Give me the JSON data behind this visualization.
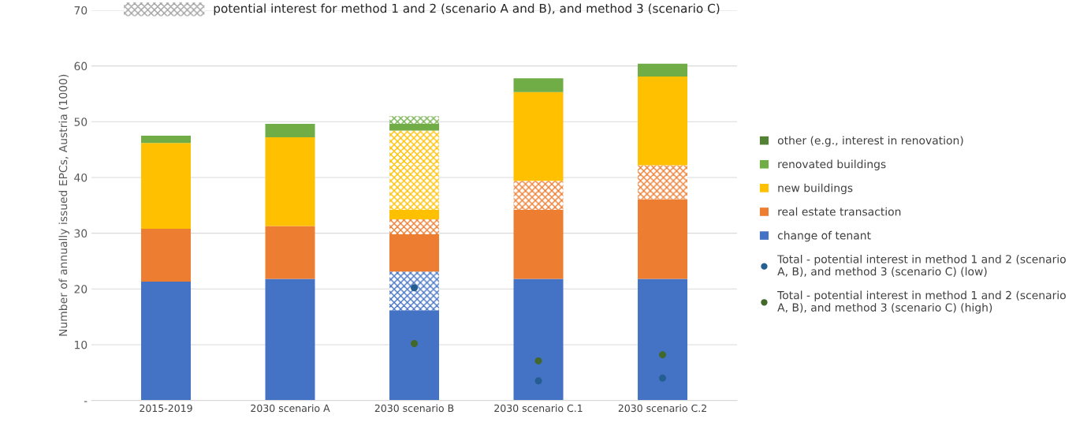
{
  "chart_data": {
    "type": "bar",
    "stacked": true,
    "categories": [
      "2015-2019",
      "2030 scenario A",
      "2030 scenario B",
      "2030 scenario C.1",
      "2030 scenario C.2"
    ],
    "ylabel": "Number of annually issued EPCs, Austria (1000)",
    "ylim": [
      0,
      70
    ],
    "yticks": [
      {
        "value": 0,
        "label": "-"
      },
      10,
      20,
      30,
      40,
      50,
      60,
      70
    ],
    "grid": "y",
    "legend": "right",
    "annotations": [
      "potential interest for method 1 and 2 (scenario A and B), and method 3 (scenario C)"
    ],
    "series": [
      {
        "name": "change of tenant",
        "color": "#4472c4",
        "values": [
          21.3,
          21.8,
          16.2,
          21.8,
          21.8
        ]
      },
      {
        "color": "#4472c4",
        "values": [
          null,
          null,
          6.9,
          null,
          null
        ]
      },
      {
        "name": "real estate transaction",
        "color": "#ed7d31",
        "values": [
          9.5,
          9.5,
          6.7,
          12.4,
          14.3
        ]
      },
      {
        "color": "#ed7d31",
        "values": [
          null,
          null,
          2.7,
          5.2,
          6.1
        ]
      },
      {
        "name": "new buildings",
        "color": "#ffc000",
        "values": [
          15.4,
          15.9,
          1.7,
          15.9,
          15.9
        ]
      },
      {
        "color": "#ffc000",
        "values": [
          null,
          null,
          14.2,
          null,
          null
        ]
      },
      {
        "name": "renovated buildings",
        "color": "#70ad47",
        "values": [
          1.3,
          2.4,
          1.2,
          2.5,
          2.3
        ]
      },
      {
        "color": "#70ad47",
        "values": [
          null,
          null,
          1.4,
          null,
          null
        ]
      },
      {
        "name": "other (e.g., interest in renovation)",
        "color": "#548235",
        "values": [
          0,
          0,
          0,
          0,
          0
        ]
      },
      {
        "name": "Total - potential interest in method 1 and 2 (scenario A, B), and method 3 (scenario C) (low)",
        "type": "scatter",
        "marker": "circle",
        "color": "#255e91",
        "values": [
          null,
          null,
          20.2,
          3.5,
          4.0
        ]
      },
      {
        "name": "Total - potential interest in method 1 and 2 (scenario A, B), and method 3 (scenario C) (high)",
        "type": "scatter",
        "marker": "circle",
        "color": "#43682b",
        "values": [
          null,
          null,
          10.2,
          7.1,
          8.2
        ]
      }
    ]
  }
}
